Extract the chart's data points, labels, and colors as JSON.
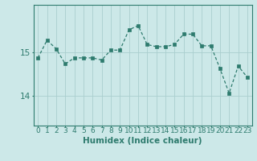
{
  "x": [
    0,
    1,
    2,
    3,
    4,
    5,
    6,
    7,
    8,
    9,
    10,
    11,
    12,
    13,
    14,
    15,
    16,
    17,
    18,
    19,
    20,
    21,
    22,
    23
  ],
  "y": [
    14.87,
    15.28,
    15.08,
    14.73,
    14.87,
    14.87,
    14.87,
    14.82,
    15.05,
    15.05,
    15.52,
    15.62,
    15.18,
    15.13,
    15.13,
    15.18,
    15.42,
    15.42,
    15.15,
    15.15,
    14.62,
    14.05,
    14.68,
    14.42
  ],
  "line_color": "#2e7b6e",
  "marker_color": "#2e7b6e",
  "bg_color": "#cce8e8",
  "grid_color": "#aacece",
  "axis_color": "#2e7b6e",
  "xlabel": "Humidex (Indice chaleur)",
  "yticks": [
    14,
    15
  ],
  "ylim": [
    13.3,
    16.1
  ],
  "xlim": [
    -0.5,
    23.5
  ],
  "tick_labels": [
    "0",
    "1",
    "2",
    "3",
    "4",
    "5",
    "6",
    "7",
    "8",
    "9",
    "10",
    "11",
    "12",
    "13",
    "14",
    "15",
    "16",
    "17",
    "18",
    "19",
    "20",
    "21",
    "22",
    "23"
  ],
  "xlabel_fontsize": 7.5,
  "ytick_fontsize": 7.5,
  "xtick_fontsize": 6.5,
  "linewidth": 0.9,
  "markersize": 2.2
}
